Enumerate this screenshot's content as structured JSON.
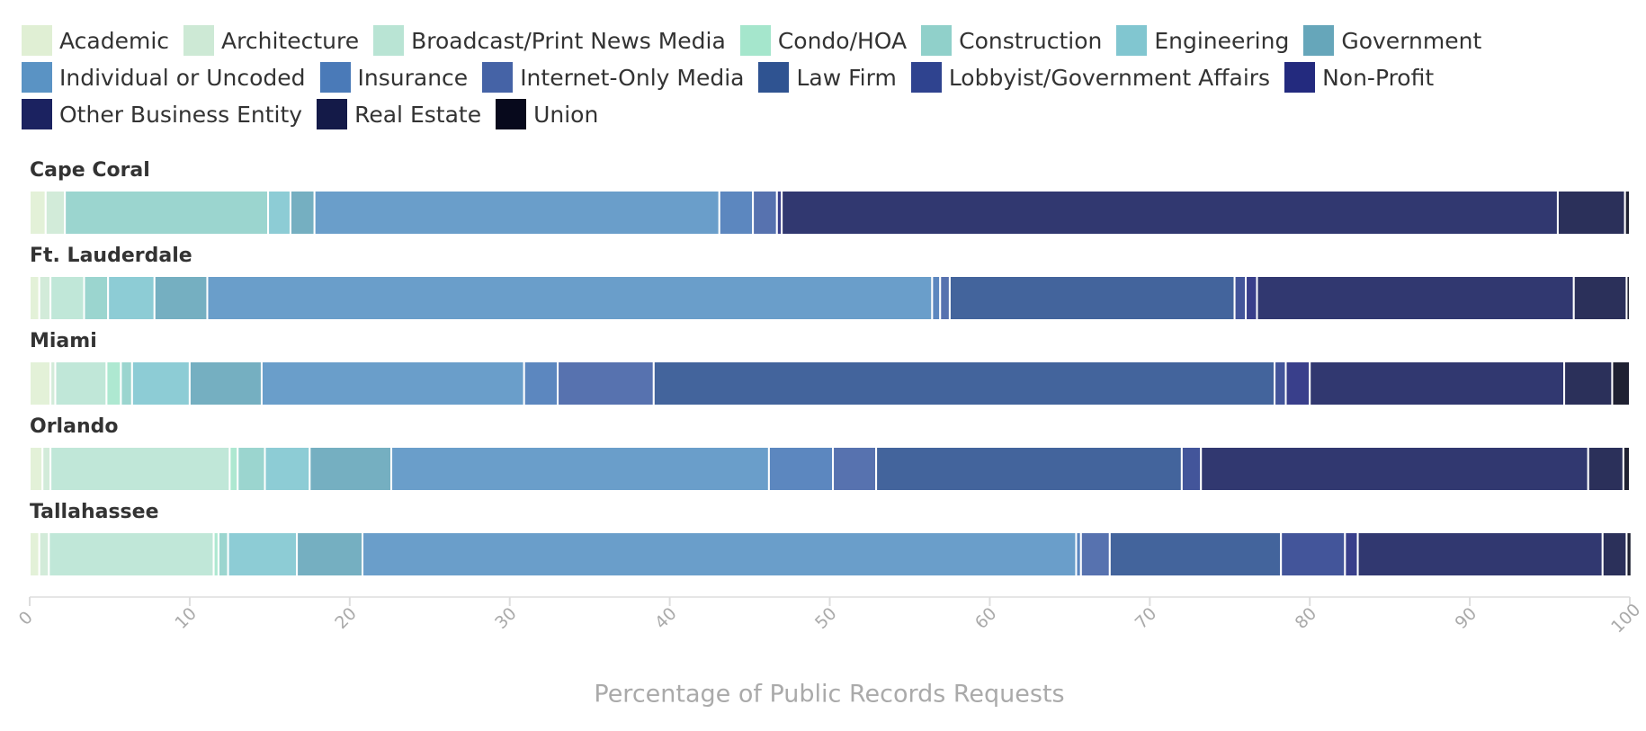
{
  "chart_data": {
    "type": "bar",
    "orientation": "horizontal",
    "stacked": true,
    "categories": [
      "Cape Coral",
      "Ft. Lauderdale",
      "Miami",
      "Orlando",
      "Tallahassee"
    ],
    "series": [
      {
        "name": "Academic",
        "color": "#e0efd4",
        "values": [
          1.0,
          0.6,
          1.3,
          0.8,
          0.6
        ]
      },
      {
        "name": "Architecture",
        "color": "#cde9d5",
        "values": [
          1.2,
          0.7,
          0.3,
          0.5,
          0.6
        ]
      },
      {
        "name": "Broadcast/Print News Media",
        "color": "#b9e4d4",
        "values": [
          0,
          2.1,
          3.2,
          11.2,
          10.3
        ]
      },
      {
        "name": "Condo/HOA",
        "color": "#a5e6cc",
        "values": [
          0,
          0,
          0.9,
          0.5,
          0.3
        ]
      },
      {
        "name": "Construction",
        "color": "#90d0ca",
        "values": [
          12.7,
          1.5,
          0.7,
          1.7,
          0.6
        ]
      },
      {
        "name": "Engineering",
        "color": "#81c6d0",
        "values": [
          1.4,
          2.9,
          3.6,
          2.8,
          4.3
        ]
      },
      {
        "name": "Government",
        "color": "#66a6ba",
        "values": [
          1.5,
          3.3,
          4.5,
          5.1,
          4.1
        ]
      },
      {
        "name": "Individual or Uncoded",
        "color": "#5a93c4",
        "values": [
          25.3,
          45.3,
          16.4,
          23.6,
          44.6
        ]
      },
      {
        "name": "Insurance",
        "color": "#4a7ab8",
        "values": [
          2.1,
          0.5,
          2.1,
          4.0,
          0.3
        ]
      },
      {
        "name": "Internet-Only Media",
        "color": "#4563a6",
        "values": [
          1.5,
          0.6,
          6.0,
          2.7,
          1.8
        ]
      },
      {
        "name": "Law Firm",
        "color": "#2f5391",
        "values": [
          0,
          17.8,
          38.8,
          19.1,
          10.7
        ]
      },
      {
        "name": "Lobbyist/Government Affairs",
        "color": "#2f438f",
        "values": [
          0,
          0.7,
          0.7,
          1.2,
          4.0
        ]
      },
      {
        "name": "Non-Profit",
        "color": "#232a7e",
        "values": [
          0.3,
          0.7,
          1.5,
          0,
          0.8
        ]
      },
      {
        "name": "Other Business Entity",
        "color": "#1b2260",
        "values": [
          48.5,
          19.8,
          15.9,
          24.2,
          15.3
        ]
      },
      {
        "name": "Real Estate",
        "color": "#141a48",
        "values": [
          4.2,
          3.3,
          3.0,
          2.2,
          1.5
        ]
      },
      {
        "name": "Union",
        "color": "#07091c",
        "values": [
          0.3,
          0.2,
          1.1,
          0.4,
          0.3
        ]
      }
    ],
    "xlabel": "Percentage of Public Records Requests",
    "xlim": [
      0,
      100
    ],
    "xticks": [
      0,
      10,
      20,
      30,
      40,
      50,
      60,
      70,
      80,
      90,
      100
    ]
  }
}
